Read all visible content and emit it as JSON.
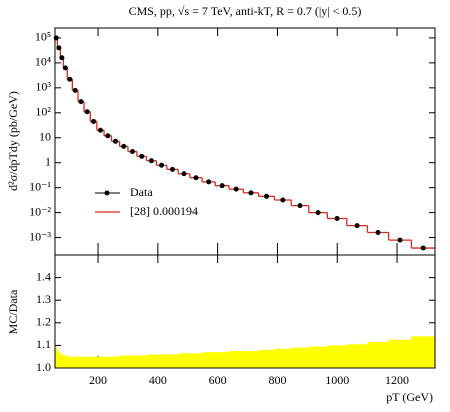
{
  "chart_data": [
    {
      "type": "histogram",
      "title": "CMS, pp, √s = 7 TeV, anti-kT, R = 0.7 (|y| < 0.5)",
      "y_label": "d²σ/dpTdy (pb/GeV)",
      "bins": [
        56,
        64,
        74,
        84,
        97,
        114,
        133,
        153,
        174,
        196,
        220,
        245,
        272,
        300,
        330,
        362,
        395,
        430,
        468,
        507,
        548,
        592,
        638,
        686,
        737,
        790,
        846,
        905,
        967,
        1032,
        1101,
        1172,
        1248,
        1327
      ],
      "xlim": [
        56,
        1327
      ],
      "ylim": [
        0.0002,
        250000
      ],
      "log_y": true,
      "yticks": [
        {
          "value": 0.001,
          "label": "10⁻³"
        },
        {
          "value": 0.01,
          "label": "10⁻²"
        },
        {
          "value": 0.1,
          "label": "10⁻¹"
        },
        1,
        10,
        {
          "value": 100,
          "label": "10²"
        },
        {
          "value": 1000,
          "label": "10³"
        },
        {
          "value": 10000,
          "label": "10⁴"
        },
        {
          "value": 100000,
          "label": "10⁵"
        }
      ],
      "series": [
        {
          "name": "Data",
          "style": "points",
          "color": "#000000",
          "values": [
            100000,
            40000,
            16000,
            6300,
            2200,
            790,
            280,
            110,
            45,
            20,
            12,
            7.2,
            4.5,
            2.8,
            1.8,
            1.2,
            0.79,
            0.54,
            0.36,
            0.25,
            0.17,
            0.12,
            0.087,
            0.062,
            0.045,
            0.032,
            0.019,
            0.01,
            0.0058,
            0.003,
            0.0016,
            0.00079,
            0.00038
          ]
        },
        {
          "name": "[28] 0.000194",
          "style": "step",
          "color": "#d62a1e",
          "values": [
            100000,
            40000,
            16000,
            6300,
            2200,
            790,
            280,
            110,
            45,
            20,
            12,
            7.2,
            4.5,
            2.8,
            1.8,
            1.2,
            0.79,
            0.54,
            0.36,
            0.25,
            0.17,
            0.12,
            0.087,
            0.062,
            0.045,
            0.032,
            0.019,
            0.01,
            0.0058,
            0.003,
            0.0016,
            0.00079,
            0.00038
          ]
        }
      ]
    },
    {
      "type": "histogram",
      "y_label": "MC/Data",
      "x_label": "pT (GeV)",
      "bins": [
        56,
        64,
        74,
        84,
        97,
        114,
        133,
        153,
        174,
        196,
        220,
        245,
        272,
        300,
        330,
        362,
        395,
        430,
        468,
        507,
        548,
        592,
        638,
        686,
        737,
        790,
        846,
        905,
        967,
        1032,
        1101,
        1172,
        1248,
        1327
      ],
      "xlim": [
        56,
        1327
      ],
      "xticks": [
        200,
        400,
        600,
        800,
        1000,
        1200
      ],
      "ylim": [
        1.0,
        1.5
      ],
      "yticks": [
        {
          "value": 1.0,
          "label": "1.0"
        },
        1.1,
        1.2,
        1.3,
        1.4
      ],
      "color": "#ffff00",
      "values": [
        1.09,
        1.07,
        1.06,
        1.055,
        1.05,
        1.05,
        1.05,
        1.05,
        1.05,
        1.05,
        1.05,
        1.05,
        1.055,
        1.055,
        1.055,
        1.06,
        1.06,
        1.06,
        1.065,
        1.065,
        1.07,
        1.07,
        1.075,
        1.075,
        1.08,
        1.085,
        1.09,
        1.095,
        1.1,
        1.105,
        1.115,
        1.125,
        1.14
      ]
    }
  ]
}
